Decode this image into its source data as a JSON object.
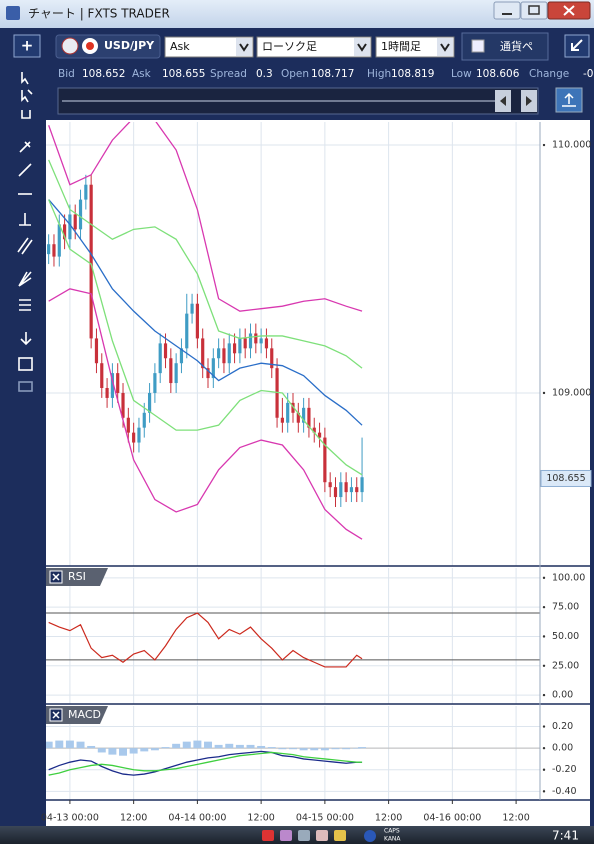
{
  "window": {
    "title": "チャート | FXTS TRADER"
  },
  "toolbar": {
    "add": "+",
    "symbol": "USD/JPY",
    "price_side": "Ask",
    "chart_type": "ローソク足",
    "timeframe": "1時間足",
    "currency_pair": "通貨ペ"
  },
  "quote": {
    "items": [
      {
        "label": "Bid",
        "value": 108.652
      },
      {
        "label": "Ask",
        "value": 108.655
      },
      {
        "label": "Spread",
        "value": 0.3
      },
      {
        "label": "Open",
        "value": 108.717
      },
      {
        "label": "High",
        "value": 108.819
      },
      {
        "label": "Low",
        "value": 108.606
      },
      {
        "label": "Change",
        "value": "-0."
      }
    ]
  },
  "chart_data": [
    {
      "type": "candlestick",
      "x": [
        -4,
        -3,
        -2,
        -1,
        0,
        1,
        2,
        3,
        4,
        5,
        6,
        7,
        8,
        9,
        10,
        11,
        12,
        13,
        14,
        15,
        16,
        17,
        18,
        19,
        20,
        21,
        22,
        23,
        24,
        25,
        26,
        27,
        28,
        29,
        30,
        31,
        32,
        33,
        34,
        35,
        36,
        37,
        38,
        39,
        40,
        41,
        42,
        43,
        44,
        45,
        46,
        47,
        48,
        49,
        50,
        51,
        52,
        53,
        54,
        55
      ],
      "open": [
        109.56,
        109.6,
        109.55,
        109.68,
        109.62,
        109.72,
        109.66,
        109.78,
        109.84,
        109.22,
        109.12,
        109.02,
        108.98,
        109.08,
        109.0,
        108.9,
        108.84,
        108.8,
        108.86,
        108.92,
        109.0,
        109.08,
        109.2,
        109.14,
        109.04,
        109.12,
        109.18,
        109.32,
        109.36,
        109.22,
        109.1,
        109.06,
        109.14,
        109.18,
        109.12,
        109.2,
        109.16,
        109.22,
        109.18,
        109.24,
        109.2,
        109.22,
        109.18,
        109.1,
        108.9,
        108.88,
        108.96,
        108.92,
        108.88,
        108.94,
        108.86,
        108.84,
        108.82,
        108.64,
        108.62,
        108.58,
        108.64,
        108.6,
        108.62,
        108.6
      ],
      "high": [
        109.64,
        109.64,
        109.72,
        109.72,
        109.76,
        109.76,
        109.82,
        109.88,
        109.88,
        109.26,
        109.16,
        109.06,
        109.12,
        109.12,
        109.04,
        108.94,
        108.88,
        108.9,
        108.96,
        109.04,
        109.12,
        109.24,
        109.24,
        109.18,
        109.16,
        109.22,
        109.4,
        109.4,
        109.4,
        109.26,
        109.14,
        109.18,
        109.22,
        109.22,
        109.24,
        109.24,
        109.26,
        109.26,
        109.28,
        109.28,
        109.26,
        109.26,
        109.22,
        109.14,
        108.98,
        109.0,
        109.0,
        108.96,
        108.98,
        108.98,
        108.9,
        108.88,
        108.86,
        108.68,
        108.66,
        108.68,
        108.68,
        108.66,
        108.66,
        108.82
      ],
      "low": [
        109.52,
        109.51,
        109.51,
        109.58,
        109.58,
        109.62,
        109.62,
        109.74,
        109.18,
        109.08,
        108.98,
        108.94,
        108.94,
        108.96,
        108.86,
        108.8,
        108.76,
        108.76,
        108.82,
        108.88,
        108.96,
        109.04,
        109.1,
        109.0,
        109.0,
        109.08,
        109.14,
        109.28,
        109.18,
        109.06,
        109.02,
        109.02,
        109.1,
        109.08,
        109.08,
        109.12,
        109.12,
        109.14,
        109.14,
        109.16,
        109.16,
        109.14,
        109.06,
        108.86,
        108.84,
        108.84,
        108.88,
        108.84,
        108.84,
        108.82,
        108.8,
        108.78,
        108.6,
        108.58,
        108.54,
        108.54,
        108.56,
        108.56,
        108.56,
        108.56
      ],
      "close": [
        109.6,
        109.55,
        109.68,
        109.62,
        109.72,
        109.66,
        109.78,
        109.84,
        109.22,
        109.12,
        109.02,
        108.98,
        109.08,
        109.0,
        108.9,
        108.84,
        108.8,
        108.86,
        108.92,
        109.0,
        109.08,
        109.2,
        109.14,
        109.04,
        109.12,
        109.18,
        109.32,
        109.36,
        109.22,
        109.1,
        109.06,
        109.14,
        109.18,
        109.12,
        109.2,
        109.16,
        109.22,
        109.18,
        109.24,
        109.2,
        109.22,
        109.18,
        109.1,
        108.9,
        108.88,
        108.96,
        108.92,
        108.88,
        108.94,
        108.86,
        108.84,
        108.82,
        108.64,
        108.62,
        108.58,
        108.64,
        108.6,
        108.62,
        108.6,
        108.66
      ],
      "up_color": "#3f9cc4",
      "down_color": "#c8303a",
      "overlays": {
        "x": [
          -4,
          0,
          4,
          8,
          12,
          16,
          20,
          24,
          28,
          32,
          36,
          40,
          44,
          48,
          52,
          55
        ],
        "series": [
          {
            "color": "#d838b0",
            "values": [
              110.08,
              109.84,
              109.88,
              110.02,
              110.11,
              110.1,
              109.98,
              109.74,
              109.38,
              109.33,
              109.34,
              109.35,
              109.37,
              109.38,
              109.35,
              109.33
            ]
          },
          {
            "color": "#7ee07a",
            "values": [
              109.94,
              109.74,
              109.68,
              109.62,
              109.66,
              109.67,
              109.62,
              109.48,
              109.25,
              109.22,
              109.23,
              109.23,
              109.21,
              109.19,
              109.15,
              109.1
            ]
          },
          {
            "color": "#2a6ec8",
            "values": [
              109.78,
              109.68,
              109.56,
              109.42,
              109.33,
              109.25,
              109.19,
              109.13,
              109.05,
              109.1,
              109.12,
              109.11,
              109.07,
              108.99,
              108.93,
              108.87
            ]
          },
          {
            "color": "#7ee07a",
            "values": [
              109.78,
              109.58,
              109.52,
              109.21,
              108.97,
              108.91,
              108.85,
              108.85,
              108.87,
              108.97,
              109.01,
              109.0,
              108.89,
              108.79,
              108.71,
              108.67
            ]
          },
          {
            "color": "#d838b0",
            "values": [
              109.37,
              109.42,
              109.4,
              109.05,
              108.73,
              108.57,
              108.52,
              108.55,
              108.69,
              108.78,
              108.81,
              108.79,
              108.69,
              108.53,
              108.45,
              108.41
            ]
          }
        ]
      },
      "current_price": 108.655,
      "xlim": [
        -4.5,
        88.5
      ],
      "xticks": [
        {
          "value": 0,
          "label": "04-13 00:00"
        },
        {
          "value": 12,
          "label": "12:00"
        },
        {
          "value": 24,
          "label": "04-14 00:00"
        },
        {
          "value": 36,
          "label": "12:00"
        },
        {
          "value": 48,
          "label": "04-15 00:00"
        },
        {
          "value": 60,
          "label": "12:00"
        },
        {
          "value": 72,
          "label": "04-16 00:00"
        },
        {
          "value": 84,
          "label": "12:00"
        }
      ],
      "ylim": [
        108.302,
        110.093
      ],
      "yticks": [
        {
          "value": 110,
          "label": "110.000"
        },
        {
          "value": 109,
          "label": "109.000"
        }
      ],
      "grid": true
    },
    {
      "type": "line",
      "title": "RSI",
      "x": [
        -4,
        -2,
        0,
        2,
        4,
        6,
        8,
        10,
        12,
        14,
        16,
        18,
        20,
        22,
        24,
        26,
        28,
        30,
        32,
        34,
        36,
        38,
        40,
        42,
        44,
        46,
        48,
        50,
        52,
        54,
        55
      ],
      "series": [
        {
          "color": "#cc2a1e",
          "values": [
            62,
            58,
            55,
            60,
            40,
            32,
            34,
            28,
            35,
            38,
            30,
            42,
            56,
            66,
            70,
            62,
            48,
            56,
            52,
            58,
            48,
            40,
            30,
            38,
            32,
            28,
            24,
            24,
            24,
            34,
            31
          ]
        }
      ],
      "levels": [
        70,
        30
      ],
      "ylim": [
        -7.6,
        108.4
      ],
      "yticks": [
        {
          "value": 100,
          "label": "100.00"
        },
        {
          "value": 75,
          "label": "75.00"
        },
        {
          "value": 50,
          "label": "50.00"
        },
        {
          "value": 25,
          "label": "25.00"
        },
        {
          "value": 0,
          "label": "0.00"
        }
      ],
      "grid": true
    },
    {
      "type": "macd",
      "title": "MACD",
      "x": [
        -4,
        -2,
        0,
        2,
        4,
        6,
        8,
        10,
        12,
        14,
        16,
        18,
        20,
        22,
        24,
        26,
        28,
        30,
        32,
        34,
        36,
        38,
        40,
        42,
        44,
        46,
        48,
        50,
        52,
        54,
        55
      ],
      "histogram": {
        "color": "#a9c9ec",
        "values": [
          0.06,
          0.07,
          0.07,
          0.06,
          0.02,
          -0.04,
          -0.06,
          -0.07,
          -0.05,
          -0.03,
          -0.02,
          0.01,
          0.04,
          0.06,
          0.07,
          0.06,
          0.03,
          0.04,
          0.03,
          0.03,
          0.02,
          0.01,
          -0.01,
          -0.01,
          -0.02,
          -0.02,
          -0.02,
          -0.01,
          -0.01,
          0,
          0.01
        ]
      },
      "series": [
        {
          "color": "#1a2a8a",
          "values": [
            -0.2,
            -0.16,
            -0.13,
            -0.11,
            -0.12,
            -0.17,
            -0.21,
            -0.24,
            -0.25,
            -0.24,
            -0.22,
            -0.19,
            -0.16,
            -0.13,
            -0.11,
            -0.09,
            -0.08,
            -0.06,
            -0.05,
            -0.04,
            -0.03,
            -0.04,
            -0.07,
            -0.08,
            -0.1,
            -0.11,
            -0.12,
            -0.13,
            -0.14,
            -0.13,
            -0.13
          ]
        },
        {
          "color": "#3fcf3f",
          "values": [
            -0.25,
            -0.23,
            -0.2,
            -0.18,
            -0.16,
            -0.15,
            -0.16,
            -0.18,
            -0.2,
            -0.21,
            -0.21,
            -0.2,
            -0.19,
            -0.17,
            -0.15,
            -0.13,
            -0.11,
            -0.09,
            -0.07,
            -0.06,
            -0.05,
            -0.04,
            -0.05,
            -0.06,
            -0.08,
            -0.09,
            -0.1,
            -0.11,
            -0.12,
            -0.13,
            -0.13
          ]
        }
      ],
      "ylim": [
        -0.48,
        0.39
      ],
      "yticks": [
        {
          "value": 0.2,
          "label": "0.20"
        },
        {
          "value": 0,
          "label": "0.00"
        },
        {
          "value": -0.2,
          "label": "-0.20"
        },
        {
          "value": -0.4,
          "label": "-0.40"
        }
      ],
      "grid": true
    }
  ],
  "taskbar": {
    "caps": "CAPS",
    "kana": "KANA",
    "time": "7:41"
  }
}
